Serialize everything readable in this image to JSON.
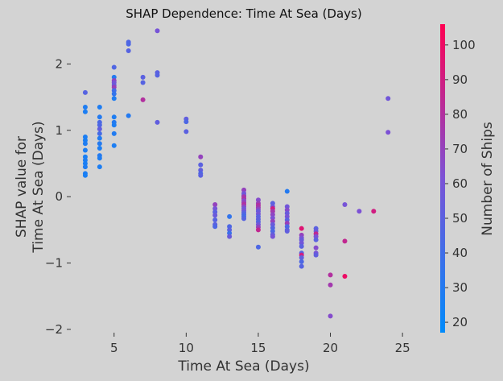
{
  "chart_data": {
    "type": "scatter",
    "title": "SHAP Dependence: Time At Sea (Days)",
    "xlabel": "Time At Sea (Days)",
    "ylabel": "SHAP value for\nTime At Sea (Days)",
    "xlim": [
      2.0,
      26.5
    ],
    "ylim": [
      -2.05,
      2.6
    ],
    "xticks": [
      5,
      10,
      15,
      20,
      25
    ],
    "yticks": [
      -2,
      -1,
      0,
      1,
      2
    ],
    "grid": false,
    "colorbar": {
      "label": "Number of Ships",
      "range": [
        17,
        106
      ],
      "ticks": [
        20,
        30,
        40,
        50,
        60,
        70,
        80,
        90,
        100
      ],
      "colors": [
        "#008bfb",
        "#ff0052"
      ]
    },
    "points": [
      {
        "x": 3,
        "y": 1.57,
        "c": 48
      },
      {
        "x": 3,
        "y": 1.35,
        "c": 28
      },
      {
        "x": 3,
        "y": 1.28,
        "c": 27
      },
      {
        "x": 3,
        "y": 0.9,
        "c": 27
      },
      {
        "x": 3,
        "y": 0.85,
        "c": 26
      },
      {
        "x": 3,
        "y": 0.8,
        "c": 28
      },
      {
        "x": 3,
        "y": 0.7,
        "c": 27
      },
      {
        "x": 3,
        "y": 0.6,
        "c": 26
      },
      {
        "x": 3,
        "y": 0.55,
        "c": 27
      },
      {
        "x": 3,
        "y": 0.5,
        "c": 26
      },
      {
        "x": 3,
        "y": 0.45,
        "c": 28
      },
      {
        "x": 3,
        "y": 0.35,
        "c": 27
      },
      {
        "x": 3,
        "y": 0.32,
        "c": 26
      },
      {
        "x": 4,
        "y": 1.35,
        "c": 28
      },
      {
        "x": 4,
        "y": 1.2,
        "c": 30
      },
      {
        "x": 4,
        "y": 1.12,
        "c": 44
      },
      {
        "x": 4,
        "y": 1.08,
        "c": 45
      },
      {
        "x": 4,
        "y": 1.02,
        "c": 52
      },
      {
        "x": 4,
        "y": 0.95,
        "c": 42
      },
      {
        "x": 4,
        "y": 0.88,
        "c": 29
      },
      {
        "x": 4,
        "y": 0.8,
        "c": 30
      },
      {
        "x": 4,
        "y": 0.73,
        "c": 27
      },
      {
        "x": 4,
        "y": 0.62,
        "c": 30
      },
      {
        "x": 4,
        "y": 0.58,
        "c": 28
      },
      {
        "x": 4,
        "y": 0.45,
        "c": 27
      },
      {
        "x": 5,
        "y": 1.95,
        "c": 46
      },
      {
        "x": 5,
        "y": 1.8,
        "c": 30
      },
      {
        "x": 5,
        "y": 1.75,
        "c": 70
      },
      {
        "x": 5,
        "y": 1.72,
        "c": 60
      },
      {
        "x": 5,
        "y": 1.68,
        "c": 55
      },
      {
        "x": 5,
        "y": 1.65,
        "c": 72
      },
      {
        "x": 5,
        "y": 1.6,
        "c": 40
      },
      {
        "x": 5,
        "y": 1.55,
        "c": 35
      },
      {
        "x": 5,
        "y": 1.48,
        "c": 28
      },
      {
        "x": 5,
        "y": 1.2,
        "c": 28
      },
      {
        "x": 5,
        "y": 1.12,
        "c": 30
      },
      {
        "x": 5,
        "y": 1.08,
        "c": 27
      },
      {
        "x": 5,
        "y": 0.95,
        "c": 29
      },
      {
        "x": 5,
        "y": 0.77,
        "c": 27
      },
      {
        "x": 6,
        "y": 2.33,
        "c": 46
      },
      {
        "x": 6,
        "y": 2.3,
        "c": 45
      },
      {
        "x": 6,
        "y": 2.2,
        "c": 48
      },
      {
        "x": 6,
        "y": 1.22,
        "c": 30
      },
      {
        "x": 7,
        "y": 1.8,
        "c": 50
      },
      {
        "x": 7,
        "y": 1.72,
        "c": 48
      },
      {
        "x": 7,
        "y": 1.46,
        "c": 80
      },
      {
        "x": 8,
        "y": 2.5,
        "c": 60
      },
      {
        "x": 8,
        "y": 1.87,
        "c": 50
      },
      {
        "x": 8,
        "y": 1.83,
        "c": 48
      },
      {
        "x": 8,
        "y": 1.12,
        "c": 52
      },
      {
        "x": 10,
        "y": 1.17,
        "c": 52
      },
      {
        "x": 10,
        "y": 1.13,
        "c": 45
      },
      {
        "x": 10,
        "y": 0.98,
        "c": 50
      },
      {
        "x": 11,
        "y": 0.6,
        "c": 70
      },
      {
        "x": 11,
        "y": 0.48,
        "c": 50
      },
      {
        "x": 11,
        "y": 0.4,
        "c": 52
      },
      {
        "x": 11,
        "y": 0.35,
        "c": 45
      },
      {
        "x": 11,
        "y": 0.32,
        "c": 50
      },
      {
        "x": 12,
        "y": -0.12,
        "c": 70
      },
      {
        "x": 12,
        "y": -0.18,
        "c": 60
      },
      {
        "x": 12,
        "y": -0.23,
        "c": 50
      },
      {
        "x": 12,
        "y": -0.28,
        "c": 55
      },
      {
        "x": 12,
        "y": -0.35,
        "c": 48
      },
      {
        "x": 12,
        "y": -0.42,
        "c": 50
      },
      {
        "x": 12,
        "y": -0.45,
        "c": 45
      },
      {
        "x": 13,
        "y": -0.3,
        "c": 35
      },
      {
        "x": 13,
        "y": -0.45,
        "c": 45
      },
      {
        "x": 13,
        "y": -0.5,
        "c": 50
      },
      {
        "x": 13,
        "y": -0.55,
        "c": 38
      },
      {
        "x": 13,
        "y": -0.6,
        "c": 55
      },
      {
        "x": 14,
        "y": 0.1,
        "c": 70
      },
      {
        "x": 14,
        "y": 0.05,
        "c": 60
      },
      {
        "x": 14,
        "y": 0.02,
        "c": 55
      },
      {
        "x": 14,
        "y": 0.0,
        "c": 75
      },
      {
        "x": 14,
        "y": -0.03,
        "c": 78
      },
      {
        "x": 14,
        "y": -0.06,
        "c": 65
      },
      {
        "x": 14,
        "y": -0.09,
        "c": 72
      },
      {
        "x": 14,
        "y": -0.12,
        "c": 80
      },
      {
        "x": 14,
        "y": -0.15,
        "c": 68
      },
      {
        "x": 14,
        "y": -0.18,
        "c": 58
      },
      {
        "x": 14,
        "y": -0.21,
        "c": 62
      },
      {
        "x": 14,
        "y": -0.24,
        "c": 50
      },
      {
        "x": 14,
        "y": -0.27,
        "c": 45
      },
      {
        "x": 14,
        "y": -0.3,
        "c": 42
      },
      {
        "x": 14,
        "y": -0.33,
        "c": 48
      },
      {
        "x": 15,
        "y": -0.05,
        "c": 65
      },
      {
        "x": 15,
        "y": -0.1,
        "c": 72
      },
      {
        "x": 15,
        "y": -0.13,
        "c": 80
      },
      {
        "x": 15,
        "y": -0.16,
        "c": 75
      },
      {
        "x": 15,
        "y": -0.19,
        "c": 68
      },
      {
        "x": 15,
        "y": -0.22,
        "c": 55
      },
      {
        "x": 15,
        "y": -0.26,
        "c": 60
      },
      {
        "x": 15,
        "y": -0.3,
        "c": 50
      },
      {
        "x": 15,
        "y": -0.34,
        "c": 52
      },
      {
        "x": 15,
        "y": -0.38,
        "c": 48
      },
      {
        "x": 15,
        "y": -0.42,
        "c": 58
      },
      {
        "x": 15,
        "y": -0.46,
        "c": 70
      },
      {
        "x": 15,
        "y": -0.5,
        "c": 85
      },
      {
        "x": 15,
        "y": -0.76,
        "c": 45
      },
      {
        "x": 16,
        "y": -0.1,
        "c": 50
      },
      {
        "x": 16,
        "y": -0.15,
        "c": 58
      },
      {
        "x": 16,
        "y": -0.18,
        "c": 90
      },
      {
        "x": 16,
        "y": -0.22,
        "c": 75
      },
      {
        "x": 16,
        "y": -0.27,
        "c": 68
      },
      {
        "x": 16,
        "y": -0.32,
        "c": 62
      },
      {
        "x": 16,
        "y": -0.37,
        "c": 70
      },
      {
        "x": 16,
        "y": -0.42,
        "c": 55
      },
      {
        "x": 16,
        "y": -0.47,
        "c": 48
      },
      {
        "x": 16,
        "y": -0.52,
        "c": 45
      },
      {
        "x": 16,
        "y": -0.57,
        "c": 52
      },
      {
        "x": 16,
        "y": -0.6,
        "c": 60
      },
      {
        "x": 17,
        "y": 0.08,
        "c": 30
      },
      {
        "x": 17,
        "y": -0.15,
        "c": 58
      },
      {
        "x": 17,
        "y": -0.2,
        "c": 65
      },
      {
        "x": 17,
        "y": -0.25,
        "c": 55
      },
      {
        "x": 17,
        "y": -0.3,
        "c": 60
      },
      {
        "x": 17,
        "y": -0.35,
        "c": 50
      },
      {
        "x": 17,
        "y": -0.4,
        "c": 72
      },
      {
        "x": 17,
        "y": -0.45,
        "c": 45
      },
      {
        "x": 17,
        "y": -0.5,
        "c": 48
      },
      {
        "x": 17,
        "y": -0.52,
        "c": 52
      },
      {
        "x": 18,
        "y": -0.48,
        "c": 95
      },
      {
        "x": 18,
        "y": -0.58,
        "c": 70
      },
      {
        "x": 18,
        "y": -0.62,
        "c": 62
      },
      {
        "x": 18,
        "y": -0.65,
        "c": 55
      },
      {
        "x": 18,
        "y": -0.7,
        "c": 58
      },
      {
        "x": 18,
        "y": -0.75,
        "c": 50
      },
      {
        "x": 18,
        "y": -0.85,
        "c": 48
      },
      {
        "x": 18,
        "y": -0.88,
        "c": 90
      },
      {
        "x": 18,
        "y": -0.92,
        "c": 52
      },
      {
        "x": 18,
        "y": -0.98,
        "c": 45
      },
      {
        "x": 18,
        "y": -1.05,
        "c": 48
      },
      {
        "x": 19,
        "y": -0.48,
        "c": 50
      },
      {
        "x": 19,
        "y": -0.52,
        "c": 55
      },
      {
        "x": 19,
        "y": -0.56,
        "c": 85
      },
      {
        "x": 19,
        "y": -0.6,
        "c": 62
      },
      {
        "x": 19,
        "y": -0.65,
        "c": 50
      },
      {
        "x": 19,
        "y": -0.77,
        "c": 65
      },
      {
        "x": 19,
        "y": -0.85,
        "c": 60
      },
      {
        "x": 19,
        "y": -0.88,
        "c": 52
      },
      {
        "x": 20,
        "y": -1.18,
        "c": 80
      },
      {
        "x": 20,
        "y": -1.33,
        "c": 75
      },
      {
        "x": 20,
        "y": -1.8,
        "c": 65
      },
      {
        "x": 21,
        "y": -0.12,
        "c": 60
      },
      {
        "x": 21,
        "y": -0.67,
        "c": 85
      },
      {
        "x": 21,
        "y": -1.2,
        "c": 100
      },
      {
        "x": 22,
        "y": -0.22,
        "c": 62
      },
      {
        "x": 23,
        "y": -0.22,
        "c": 90
      },
      {
        "x": 24,
        "y": 1.48,
        "c": 58
      },
      {
        "x": 24,
        "y": 0.97,
        "c": 62
      }
    ]
  }
}
